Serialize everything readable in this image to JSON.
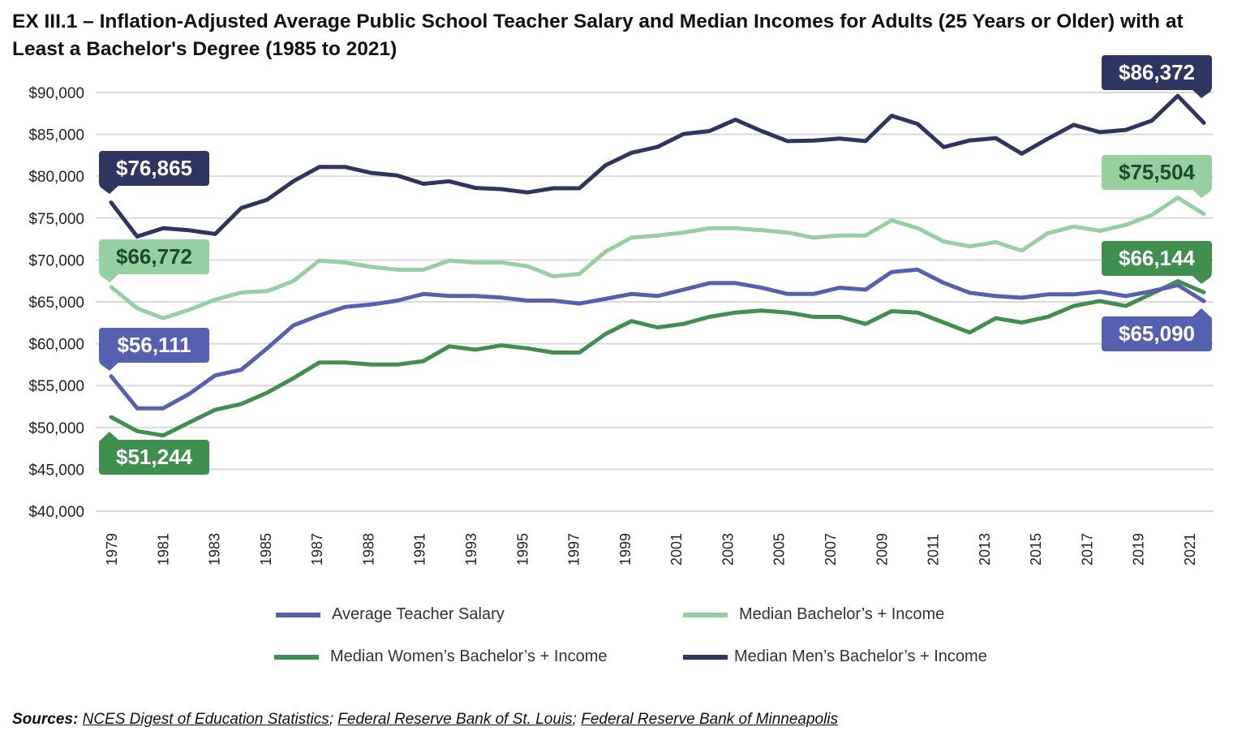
{
  "chart_data": {
    "type": "line",
    "title": "EX III.1 – Inflation-Adjusted Average Public School Teacher Salary and Median Incomes for Adults (25 Years or Older) with at Least a Bachelor's Degree (1985 to 2021)",
    "x": [
      1979,
      1980,
      1981,
      1982,
      1983,
      1984,
      1985,
      1986,
      1987,
      1988,
      1989,
      1990,
      1991,
      1992,
      1993,
      1994,
      1995,
      1996,
      1997,
      1998,
      1999,
      2000,
      2001,
      2002,
      2003,
      2004,
      2005,
      2006,
      2007,
      2008,
      2009,
      2010,
      2011,
      2012,
      2013,
      2014,
      2015,
      2016,
      2017,
      2018,
      2019,
      2020,
      2021
    ],
    "x_tick_labels": [
      "1979",
      "1981",
      "1983",
      "1985",
      "1987",
      "1988",
      "1991",
      "1993",
      "1995",
      "1997",
      "1999",
      "2001",
      "2003",
      "2005",
      "2007",
      "2009",
      "2011",
      "2013",
      "2015",
      "2017",
      "2019",
      "2021"
    ],
    "y_tick_labels": [
      "$90,000",
      "$85,000",
      "$80,000",
      "$75,000",
      "$70,000",
      "$65,000",
      "$60,000",
      "$55,000",
      "$50,000",
      "$45,000",
      "$40,000"
    ],
    "ylim": [
      40000,
      90000
    ],
    "grid": "horizontal",
    "legend_placement": "bottom",
    "series": [
      {
        "name": "Average Teacher Salary",
        "color": "#5561b0",
        "values": [
          56111,
          52290,
          52290,
          54000,
          56210,
          56890,
          59450,
          62180,
          63380,
          64400,
          64680,
          65150,
          65940,
          65700,
          65700,
          65500,
          65150,
          65150,
          64800,
          65360,
          65940,
          65700,
          66450,
          67240,
          67240,
          66690,
          65940,
          65940,
          66690,
          66450,
          68570,
          68850,
          67270,
          66090,
          65690,
          65490,
          65890,
          65890,
          66210,
          65690,
          66280,
          67000,
          65090
        ],
        "start_label": "$56,111",
        "end_label": "$65,090"
      },
      {
        "name": "Median Bachelor’s + Income",
        "color": "#96cfa0",
        "values": [
          66772,
          64230,
          63040,
          64060,
          65260,
          66110,
          66280,
          67470,
          69930,
          69690,
          69180,
          68840,
          68840,
          69930,
          69690,
          69690,
          69250,
          68050,
          68330,
          70990,
          72660,
          72930,
          73280,
          73790,
          73790,
          73550,
          73280,
          72660,
          72930,
          72930,
          74740,
          73800,
          72210,
          71620,
          72130,
          71110,
          73200,
          73990,
          73480,
          74190,
          75380,
          77430,
          75504
        ],
        "start_label": "$66,772",
        "end_label": "$75,504"
      },
      {
        "name": "Median Women’s Bachelor’s + Income",
        "color": "#3f8f4f",
        "values": [
          51244,
          49560,
          49040,
          50580,
          52110,
          52800,
          54160,
          55870,
          57750,
          57750,
          57510,
          57510,
          57920,
          59690,
          59280,
          59800,
          59450,
          58940,
          58940,
          61160,
          62700,
          61950,
          62360,
          63210,
          63720,
          63960,
          63720,
          63210,
          63210,
          62360,
          63890,
          63720,
          62530,
          61340,
          63040,
          62530,
          63200,
          64510,
          65100,
          64510,
          65970,
          67470,
          66144
        ],
        "start_label": "$51,244",
        "end_label": "$66,144"
      },
      {
        "name": "Median Men’s Bachelor’s + Income",
        "color": "#2e3560",
        "values": [
          76865,
          72800,
          73800,
          73550,
          73100,
          76200,
          77200,
          79400,
          81100,
          81100,
          80400,
          80100,
          79100,
          79400,
          78600,
          78460,
          78060,
          78570,
          78570,
          81300,
          82800,
          83500,
          85050,
          85400,
          86750,
          85400,
          84200,
          84250,
          84500,
          84200,
          87230,
          86250,
          83480,
          84270,
          84550,
          82690,
          84470,
          86130,
          85260,
          85530,
          86640,
          89600,
          86372
        ],
        "start_label": "$76,865",
        "end_label": "$86,372"
      }
    ]
  },
  "sources": {
    "label": "Sources:",
    "links": [
      "NCES Digest of Education Statistics",
      "Federal Reserve Bank of St. Louis",
      "Federal Reserve Bank of Minneapolis"
    ],
    "separator": "; "
  }
}
